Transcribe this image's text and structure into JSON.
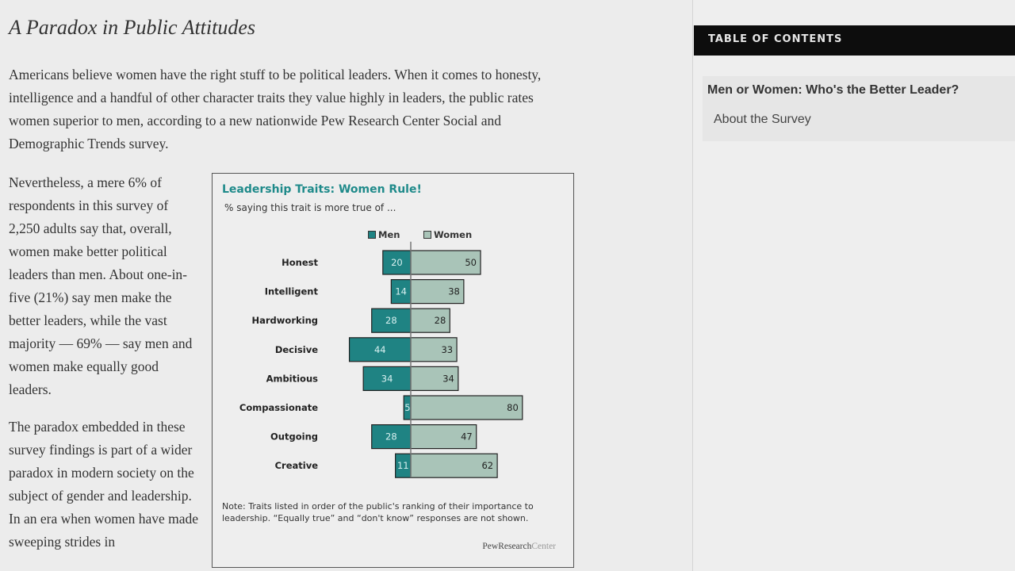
{
  "article": {
    "title": "A Paradox in Public Attitudes",
    "paragraphs": [
      "Americans believe women have the right stuff to be political leaders. When it comes to honesty, intelligence and a handful of other character traits they value highly in leaders, the public rates women superior to men, according to a new nationwide Pew Research Center Social and Demographic Trends survey.",
      "Nevertheless, a mere 6% of respondents in this survey of 2,250 adults say that, overall, women make better political leaders than men. About one-in-five (21%) say men make the better leaders, while the vast majority — 69% — say men and women make equally good leaders.",
      "The paradox embedded in these survey findings is part of a wider paradox in modern society on the subject of gender and leadership. In an era when women have made sweeping strides in"
    ]
  },
  "chart_data": {
    "type": "bar",
    "orientation": "horizontal-diverging",
    "title": "Leadership Traits: Women Rule!",
    "subtitle": "% saying this trait is more true of ...",
    "categories": [
      "Honest",
      "Intelligent",
      "Hardworking",
      "Decisive",
      "Ambitious",
      "Compassionate",
      "Outgoing",
      "Creative"
    ],
    "series": [
      {
        "name": "Men",
        "values": [
          20,
          14,
          28,
          44,
          34,
          5,
          28,
          11
        ],
        "color": "#1f8383",
        "direction": "left"
      },
      {
        "name": "Women",
        "values": [
          50,
          38,
          28,
          33,
          34,
          80,
          47,
          62
        ],
        "color": "#a9c4b8",
        "direction": "right"
      }
    ],
    "note": "Note: Traits listed in order of the public's ranking of their importance to leadership. “Equally true” and “don't know” responses are not shown.",
    "source_brand": "PewResearchCenter",
    "source_brand_parts": [
      "PewResearch",
      "Center"
    ],
    "legend_position": "top",
    "grid": false
  },
  "sidebar": {
    "header": "TABLE OF CONTENTS",
    "items": [
      {
        "label": "Men or Women: Who's the Better Leader?",
        "active": true
      },
      {
        "label": "About the Survey",
        "active": false
      }
    ]
  }
}
